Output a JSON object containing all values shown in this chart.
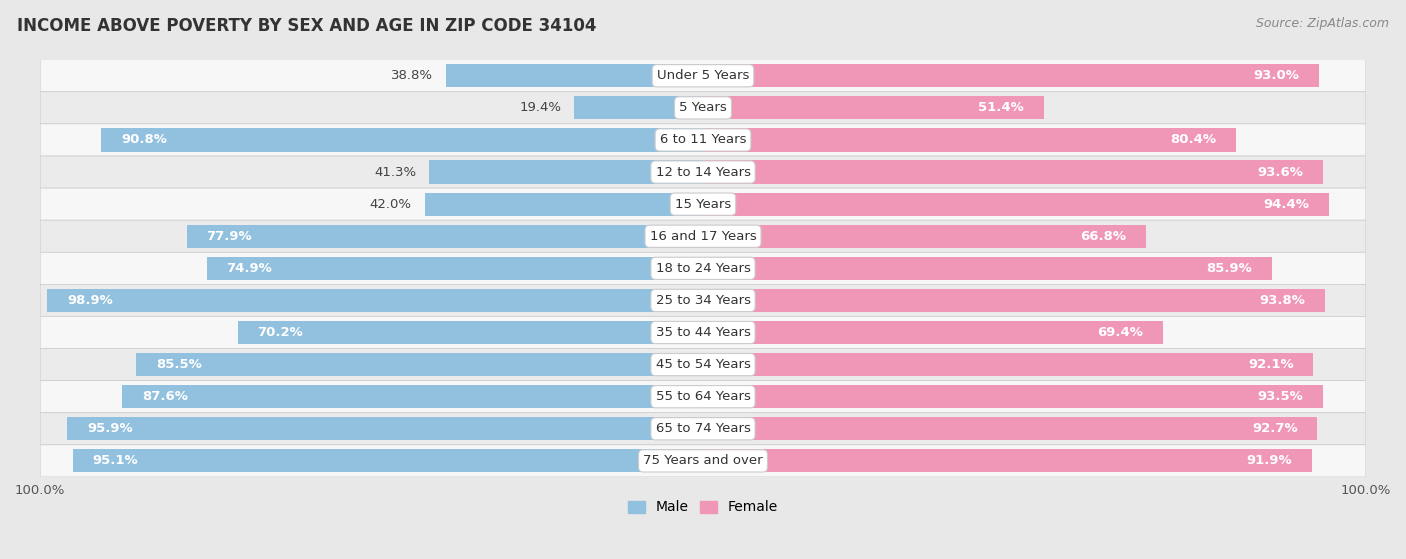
{
  "title": "INCOME ABOVE POVERTY BY SEX AND AGE IN ZIP CODE 34104",
  "source": "Source: ZipAtlas.com",
  "categories": [
    "Under 5 Years",
    "5 Years",
    "6 to 11 Years",
    "12 to 14 Years",
    "15 Years",
    "16 and 17 Years",
    "18 to 24 Years",
    "25 to 34 Years",
    "35 to 44 Years",
    "45 to 54 Years",
    "55 to 64 Years",
    "65 to 74 Years",
    "75 Years and over"
  ],
  "male_values": [
    38.8,
    19.4,
    90.8,
    41.3,
    42.0,
    77.9,
    74.9,
    98.9,
    70.2,
    85.5,
    87.6,
    95.9,
    95.1
  ],
  "female_values": [
    93.0,
    51.4,
    80.4,
    93.6,
    94.4,
    66.8,
    85.9,
    93.8,
    69.4,
    92.1,
    93.5,
    92.7,
    91.9
  ],
  "male_color": "#92c0df",
  "female_color": "#f097b8",
  "bg_outer": "#e8e8e8",
  "row_bg_light": "#f7f7f7",
  "row_bg_dark": "#ebebeb",
  "bar_height": 0.72,
  "xlim": [
    0,
    100
  ],
  "title_fontsize": 12,
  "label_fontsize": 9.5,
  "tick_fontsize": 9.5,
  "source_fontsize": 9
}
